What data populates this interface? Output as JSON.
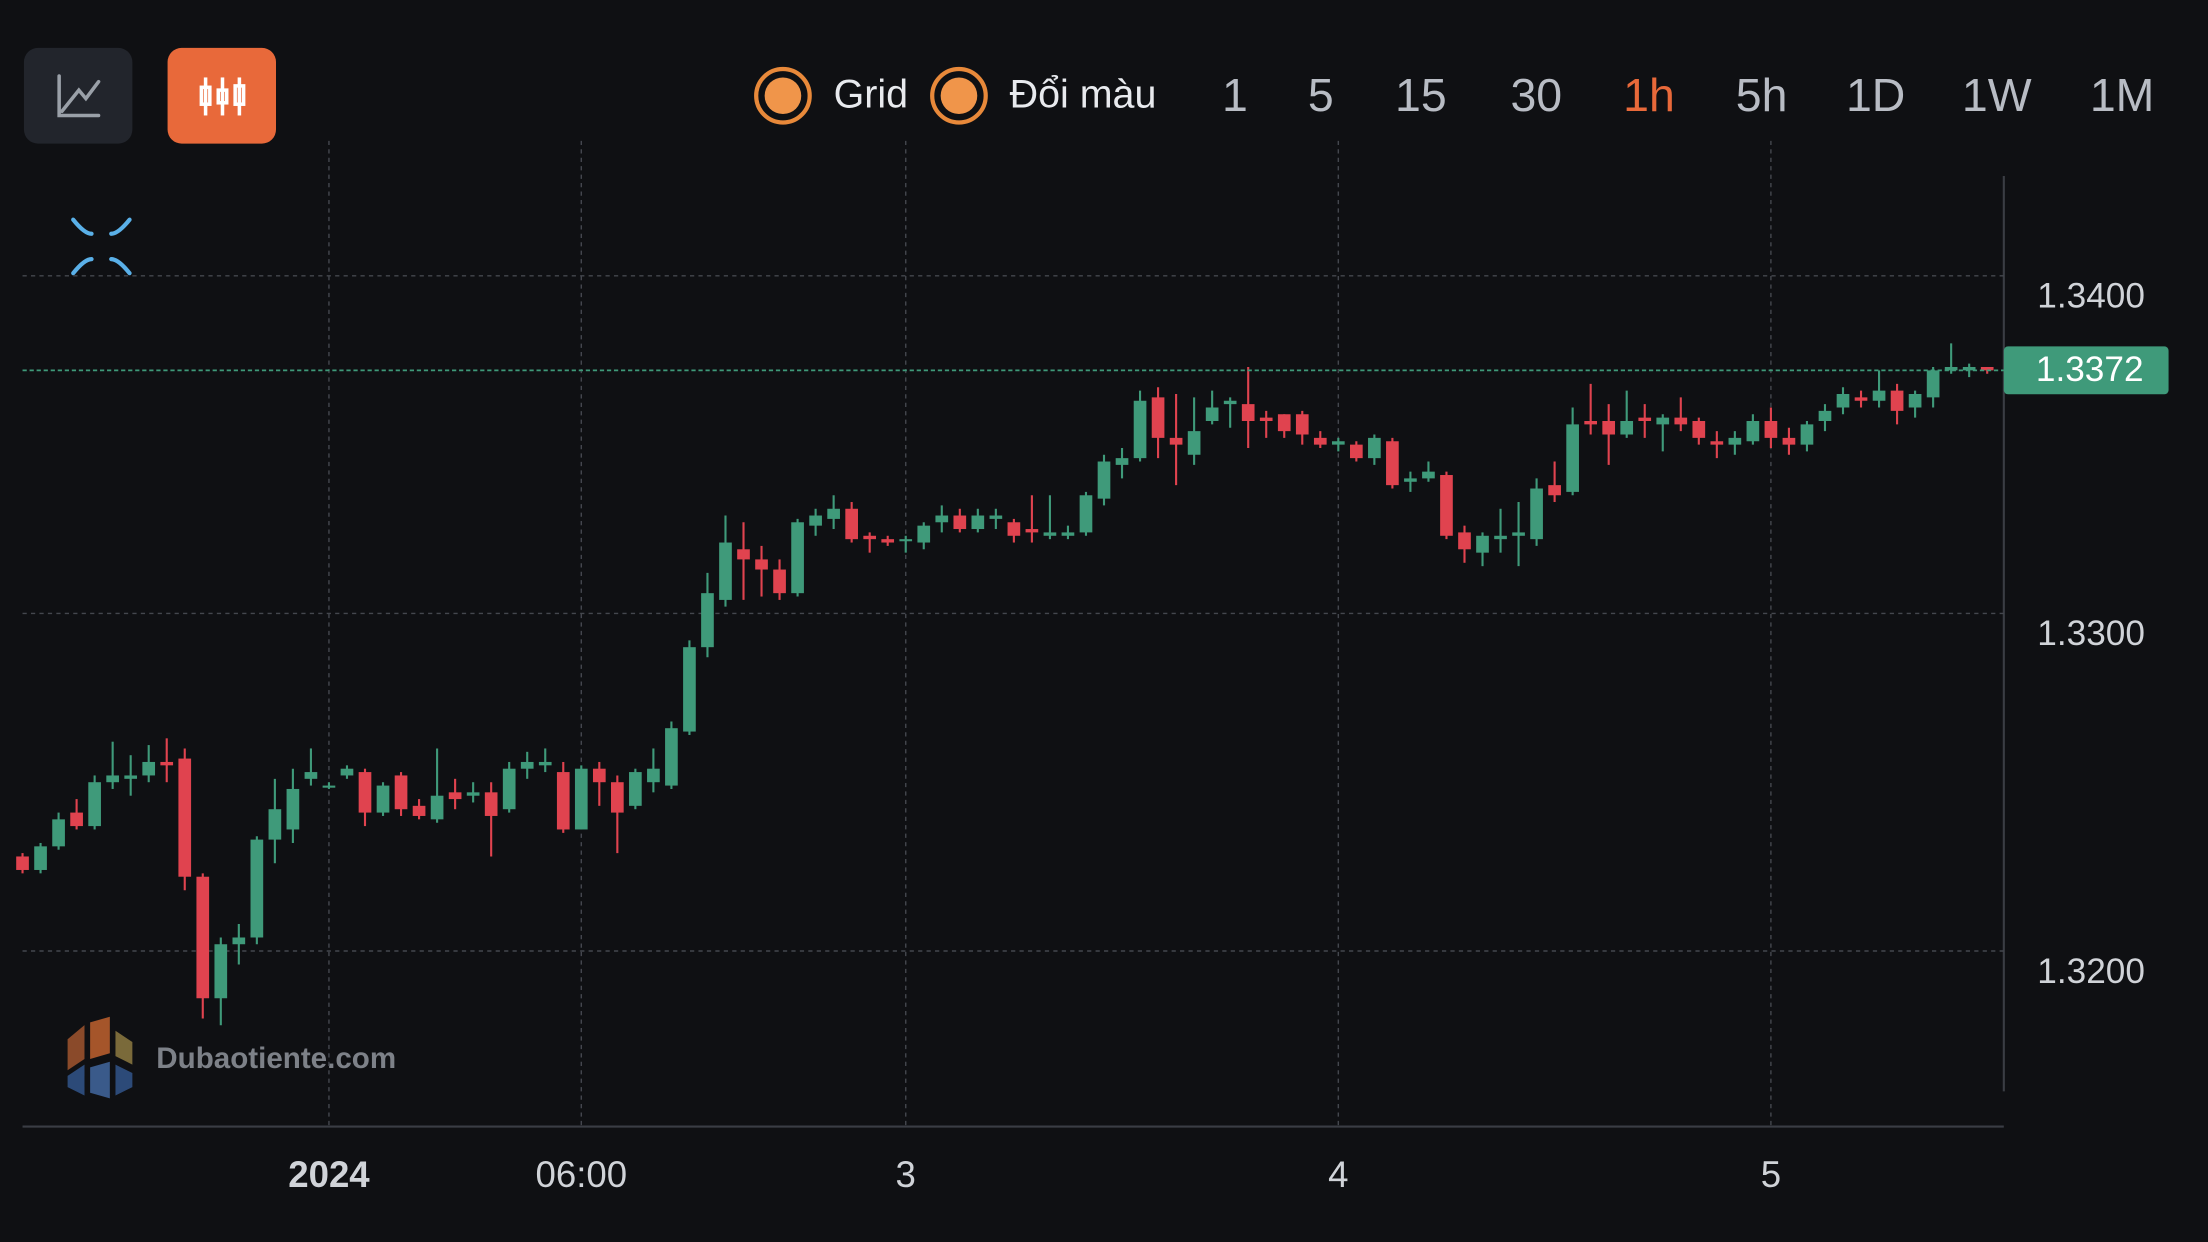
{
  "toolbar": {
    "toggles": [
      "Grid",
      "Đổi màu"
    ],
    "intervals": [
      "1",
      "5",
      "15",
      "30",
      "1h",
      "5h",
      "1D",
      "1W",
      "1M"
    ],
    "active_interval": 4
  },
  "watermark": "Dubaotiente.com",
  "chart_data": {
    "type": "candlestick",
    "up_color": "#3f9a7a",
    "down_color": "#e0434f",
    "grid": true,
    "ylim": [
      1.3148,
      1.344
    ],
    "yticks": [
      {
        "value": 1.34,
        "label": "1.3400"
      },
      {
        "value": 1.33,
        "label": "1.3300"
      },
      {
        "value": 1.32,
        "label": "1.3200"
      }
    ],
    "last_price": 1.3372,
    "categories": [
      null,
      null,
      null,
      null,
      null,
      null,
      null,
      null,
      null,
      null,
      null,
      null,
      null,
      null,
      null,
      null,
      null,
      "2024",
      null,
      null,
      null,
      null,
      null,
      null,
      null,
      null,
      null,
      null,
      null,
      null,
      null,
      "06:00",
      null,
      null,
      null,
      null,
      null,
      null,
      null,
      null,
      null,
      null,
      null,
      null,
      null,
      null,
      null,
      null,
      null,
      "3",
      null,
      null,
      null,
      null,
      null,
      null,
      null,
      null,
      null,
      null,
      null,
      null,
      null,
      null,
      null,
      null,
      null,
      null,
      null,
      null,
      null,
      null,
      null,
      "4",
      null,
      null,
      null,
      null,
      null,
      null,
      null,
      null,
      null,
      null,
      null,
      null,
      null,
      null,
      null,
      null,
      null,
      null,
      null,
      null,
      null,
      null,
      null,
      "5",
      null,
      null,
      null,
      null,
      null,
      null,
      null,
      null,
      null,
      null,
      null,
      null
    ],
    "open": [
      1.3228,
      1.3224,
      1.3231,
      1.3241,
      1.3237,
      1.325,
      1.3251,
      1.3252,
      1.3256,
      1.3257,
      1.3222,
      1.3186,
      1.3202,
      1.3204,
      1.3233,
      1.3236,
      1.3251,
      1.3249,
      1.3252,
      1.3253,
      1.3241,
      1.3252,
      1.3243,
      1.3239,
      1.3247,
      1.3246,
      1.3247,
      1.3242,
      1.3254,
      1.3255,
      1.3253,
      1.3236,
      1.3254,
      1.325,
      1.3243,
      1.325,
      1.3249,
      1.3265,
      1.329,
      1.3304,
      1.3319,
      1.3316,
      1.3313,
      1.3306,
      1.3326,
      1.3328,
      1.3331,
      1.3323,
      1.3322,
      1.3322,
      1.3321,
      1.3327,
      1.3329,
      1.3325,
      1.3328,
      1.3327,
      1.3325,
      1.3323,
      1.3323,
      1.3324,
      1.3334,
      1.3344,
      1.3346,
      1.3364,
      1.3352,
      1.3347,
      1.3357,
      1.3362,
      1.3362,
      1.3358,
      1.3359,
      1.3359,
      1.3352,
      1.335,
      1.335,
      1.3346,
      1.3351,
      1.3339,
      1.334,
      1.3341,
      1.3324,
      1.3318,
      1.3322,
      1.3323,
      1.3322,
      1.3338,
      1.3336,
      1.3357,
      1.3357,
      1.3353,
      1.3358,
      1.3356,
      1.3358,
      1.3357,
      1.3351,
      1.335,
      1.3351,
      1.3357,
      1.3352,
      1.335,
      1.3357,
      1.3361,
      1.3364,
      1.3363,
      1.3366,
      1.3361,
      1.3364,
      1.3372,
      1.3372,
      1.3373
    ],
    "high": [
      1.3229,
      1.3232,
      1.3241,
      1.3245,
      1.3252,
      1.3262,
      1.3258,
      1.3261,
      1.3263,
      1.326,
      1.3223,
      1.3204,
      1.3208,
      1.3234,
      1.3251,
      1.3254,
      1.326,
      1.325,
      1.3255,
      1.3254,
      1.325,
      1.3253,
      1.3245,
      1.326,
      1.3251,
      1.325,
      1.325,
      1.3256,
      1.3259,
      1.326,
      1.3256,
      1.3255,
      1.3256,
      1.3252,
      1.3254,
      1.326,
      1.3268,
      1.3292,
      1.3312,
      1.3329,
      1.3327,
      1.332,
      1.3316,
      1.3328,
      1.3331,
      1.3335,
      1.3333,
      1.3324,
      1.3323,
      1.3323,
      1.3327,
      1.3332,
      1.3331,
      1.3331,
      1.3331,
      1.3328,
      1.3335,
      1.3335,
      1.3326,
      1.3336,
      1.3347,
      1.3349,
      1.3366,
      1.3367,
      1.3365,
      1.3364,
      1.3366,
      1.3364,
      1.3373,
      1.336,
      1.3359,
      1.336,
      1.3354,
      1.3352,
      1.3351,
      1.3353,
      1.3352,
      1.3342,
      1.3345,
      1.3342,
      1.3326,
      1.3324,
      1.3331,
      1.3333,
      1.334,
      1.3345,
      1.3361,
      1.3368,
      1.3362,
      1.3366,
      1.3362,
      1.3359,
      1.3364,
      1.3358,
      1.3354,
      1.3354,
      1.3359,
      1.3361,
      1.3355,
      1.3357,
      1.3362,
      1.3367,
      1.3366,
      1.3372,
      1.3368,
      1.3366,
      1.3373,
      1.338,
      1.3374,
      1.3373
    ],
    "low": [
      1.3223,
      1.3223,
      1.323,
      1.3236,
      1.3236,
      1.3248,
      1.3246,
      1.325,
      1.325,
      1.3218,
      1.318,
      1.3178,
      1.3196,
      1.3202,
      1.3226,
      1.3232,
      1.3249,
      1.3248,
      1.3251,
      1.3237,
      1.324,
      1.324,
      1.3239,
      1.3238,
      1.3242,
      1.3244,
      1.3228,
      1.3241,
      1.3251,
      1.3253,
      1.3235,
      1.3236,
      1.3243,
      1.3229,
      1.3242,
      1.3247,
      1.3248,
      1.3264,
      1.3287,
      1.3302,
      1.3304,
      1.3305,
      1.3304,
      1.3305,
      1.3323,
      1.3325,
      1.3321,
      1.3318,
      1.332,
      1.3318,
      1.3319,
      1.3324,
      1.3324,
      1.3324,
      1.3325,
      1.3321,
      1.3321,
      1.3322,
      1.3322,
      1.3323,
      1.3332,
      1.334,
      1.3345,
      1.3346,
      1.3338,
      1.3344,
      1.3356,
      1.3355,
      1.3349,
      1.3352,
      1.3352,
      1.335,
      1.3349,
      1.3348,
      1.3345,
      1.3344,
      1.3337,
      1.3336,
      1.3339,
      1.3322,
      1.3315,
      1.3314,
      1.3318,
      1.3314,
      1.332,
      1.3333,
      1.3335,
      1.3353,
      1.3344,
      1.3352,
      1.3352,
      1.3348,
      1.3354,
      1.335,
      1.3346,
      1.3347,
      1.335,
      1.3349,
      1.3347,
      1.3348,
      1.3354,
      1.3359,
      1.3361,
      1.3361,
      1.3356,
      1.3358,
      1.3361,
      1.3371,
      1.337,
      1.3371
    ],
    "close": [
      1.3224,
      1.3231,
      1.3239,
      1.3237,
      1.325,
      1.3252,
      1.3252,
      1.3256,
      1.3255,
      1.3222,
      1.3186,
      1.3202,
      1.3204,
      1.3233,
      1.3242,
      1.3248,
      1.3253,
      1.3249,
      1.3254,
      1.3241,
      1.3249,
      1.3242,
      1.324,
      1.3246,
      1.3245,
      1.3247,
      1.324,
      1.3254,
      1.3256,
      1.3256,
      1.3236,
      1.3254,
      1.325,
      1.3241,
      1.3253,
      1.3254,
      1.3266,
      1.329,
      1.3306,
      1.3321,
      1.3316,
      1.3313,
      1.3306,
      1.3327,
      1.3329,
      1.3331,
      1.3322,
      1.3322,
      1.3321,
      1.3322,
      1.3326,
      1.3329,
      1.3325,
      1.3329,
      1.3329,
      1.3323,
      1.3324,
      1.3324,
      1.3324,
      1.3335,
      1.3345,
      1.3346,
      1.3363,
      1.3352,
      1.335,
      1.3354,
      1.3361,
      1.3363,
      1.3357,
      1.3357,
      1.3354,
      1.3353,
      1.335,
      1.3351,
      1.3346,
      1.3352,
      1.3338,
      1.334,
      1.3342,
      1.3323,
      1.3319,
      1.3323,
      1.3323,
      1.3324,
      1.3337,
      1.3335,
      1.3356,
      1.3356,
      1.3353,
      1.3357,
      1.3357,
      1.3358,
      1.3356,
      1.3352,
      1.335,
      1.3352,
      1.3357,
      1.3352,
      1.335,
      1.3356,
      1.336,
      1.3365,
      1.3363,
      1.3366,
      1.336,
      1.3365,
      1.3372,
      1.3373,
      1.3373,
      1.3372
    ]
  }
}
